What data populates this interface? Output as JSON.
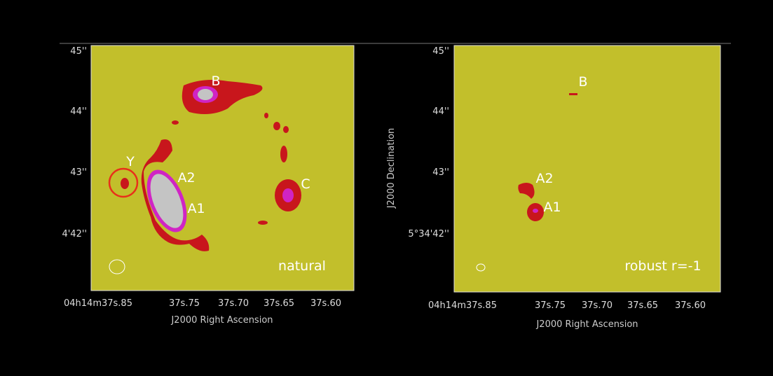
{
  "panels": [
    {
      "y_ticks": [
        "45''",
        "44''",
        "43''",
        "4'42''"
      ],
      "x_ticks": [
        "04h14m37s.85",
        "37s.75",
        "37s.70",
        "37s.65",
        "37s.60"
      ],
      "x_label": "J2000 Right Ascension",
      "labels": [
        "B",
        "Y",
        "A2",
        "C",
        "A1"
      ],
      "weighting": "natural"
    },
    {
      "y_ticks": [
        "45''",
        "44''",
        "43''",
        "5°34'42''"
      ],
      "x_ticks": [
        "04h14m37s.85",
        "37s.75",
        "37s.70",
        "37s.65",
        "37s.60"
      ],
      "x_label": "J2000 Right Ascension",
      "y_label": "J2000 Declination",
      "labels": [
        "B",
        "A2",
        "A1"
      ],
      "weighting": "robust r=-1"
    }
  ]
}
